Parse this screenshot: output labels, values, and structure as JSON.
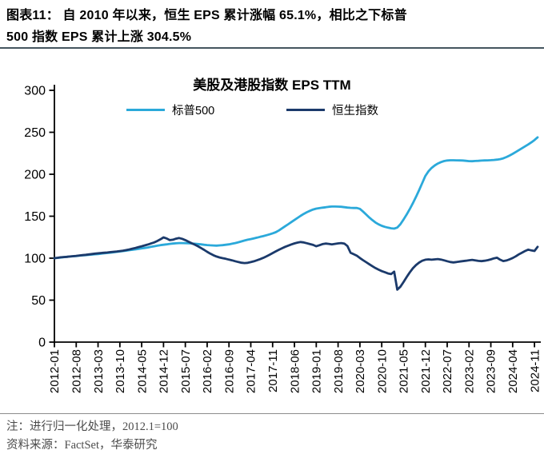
{
  "header": {
    "line1": "图表11：  自 2010 年以来，恒生 EPS 累计涨幅 65.1%，相比之下标普",
    "line2": "500 指数 EPS 累计上涨 304.5%"
  },
  "chart": {
    "title": "美股及港股指数 EPS TTM",
    "colors": {
      "sp500": "#2BA9DA",
      "hsi": "#1B3A6B",
      "axis": "#000000"
    }
  },
  "chart_data": {
    "type": "line",
    "title": "美股及港股指数 EPS TTM",
    "normalization": "2012.1=100",
    "x_start": "2012-01",
    "x_freq": "monthly",
    "ylim": [
      0,
      300
    ],
    "yticks": [
      0,
      50,
      100,
      150,
      200,
      250,
      300
    ],
    "xtick_labels": [
      "2012-01",
      "2012-08",
      "2013-03",
      "2013-10",
      "2014-05",
      "2014-12",
      "2015-07",
      "2016-02",
      "2016-09",
      "2017-04",
      "2017-11",
      "2018-06",
      "2019-01",
      "2019-08",
      "2020-03",
      "2020-10",
      "2021-05",
      "2021-12",
      "2022-07",
      "2023-02",
      "2023-09",
      "2024-04",
      "2024-11"
    ],
    "xtick_step_months": 7,
    "legend_position": "top",
    "grid": false,
    "series": [
      {
        "name": "标普500",
        "color": "#2BA9DA",
        "values": [
          100,
          100.4,
          100.8,
          101.2,
          101.6,
          102,
          102.3,
          102.6,
          103,
          103.3,
          103.6,
          104,
          104.3,
          104.7,
          105,
          105.4,
          105.8,
          106.2,
          106.6,
          107,
          107.5,
          108,
          108.5,
          109,
          109.5,
          110,
          110.5,
          111,
          111.6,
          112.2,
          112.8,
          113.5,
          114.2,
          114.9,
          115.5,
          116,
          116.5,
          117,
          117.4,
          117.7,
          118,
          118,
          117.9,
          117.7,
          117.5,
          117.2,
          116.9,
          116.5,
          116,
          115.6,
          115.3,
          115.1,
          115,
          115.2,
          115.5,
          116,
          116.5,
          117.2,
          118,
          119,
          120,
          121,
          122,
          122.8,
          123.6,
          124.5,
          125.4,
          126.3,
          127.3,
          128.4,
          129.6,
          131,
          133,
          135.5,
          138,
          140.5,
          143,
          145.5,
          148,
          150.5,
          152.8,
          154.8,
          156.5,
          158,
          159,
          159.6,
          160.2,
          160.7,
          161.2,
          161.5,
          161.5,
          161.4,
          161.2,
          160.8,
          160.3,
          160,
          159.8,
          159.8,
          158.8,
          155.5,
          152,
          148.5,
          145.3,
          142.5,
          140.3,
          138.6,
          137.3,
          136.4,
          135.6,
          135.2,
          136.5,
          140.5,
          146,
          152,
          158.5,
          165.5,
          173,
          181,
          189.5,
          198,
          203.5,
          207.5,
          210.5,
          212.8,
          214.5,
          215.7,
          216.4,
          216.7,
          216.7,
          216.6,
          216.5,
          216.4,
          216,
          215.6,
          215.5,
          215.8,
          216,
          216.3,
          216.5,
          216.6,
          216.8,
          217,
          217.4,
          218,
          219,
          220.5,
          222.3,
          224.3,
          226.5,
          228.8,
          231,
          233.2,
          235.5,
          238,
          240.8,
          244
        ]
      },
      {
        "name": "恒生指数",
        "color": "#1B3A6B",
        "values": [
          100,
          100.5,
          101,
          101.3,
          101.6,
          102,
          102.4,
          102.8,
          103.2,
          103.6,
          104,
          104.5,
          105,
          105.4,
          105.8,
          106.2,
          106.5,
          106.8,
          107.2,
          107.6,
          108,
          108.5,
          109,
          109.6,
          110.4,
          111.3,
          112.2,
          113.2,
          114.2,
          115.2,
          116.3,
          117.5,
          118.8,
          120.5,
          122.5,
          124.8,
          123.5,
          121.5,
          122,
          123.2,
          124,
          123,
          121.5,
          119.6,
          117.8,
          116.2,
          114.3,
          112.2,
          110,
          107.6,
          105.4,
          103.5,
          102,
          100.9,
          100,
          99.2,
          98.3,
          97.4,
          96.4,
          95.4,
          94.6,
          94.2,
          94.5,
          95.3,
          96.3,
          97.5,
          98.9,
          100.4,
          102.2,
          104.1,
          106.1,
          108.1,
          110,
          111.8,
          113.5,
          115,
          116.4,
          117.6,
          118.6,
          119.2,
          118.8,
          117.8,
          116.8,
          115.8,
          114.2,
          115.4,
          116.8,
          117.4,
          117,
          116.5,
          117,
          117.6,
          118,
          117.4,
          114.5,
          106.5,
          104.8,
          103,
          100.2,
          97.6,
          95.2,
          92.8,
          90.4,
          88.2,
          86.3,
          84.6,
          83.2,
          81.8,
          81,
          84,
          62.5,
          66,
          71.5,
          77.5,
          83,
          88,
          91.8,
          94.8,
          97,
          98.2,
          98.6,
          98.2,
          98.6,
          99,
          98.4,
          97.4,
          96.4,
          95.4,
          95,
          95.4,
          96,
          96.5,
          97,
          97.5,
          98,
          97.4,
          96.8,
          96.5,
          97,
          97.6,
          98.6,
          99.8,
          100.6,
          98.2,
          96.6,
          97.2,
          98.6,
          100.2,
          102.2,
          104.6,
          106.6,
          108.6,
          110.2,
          109.2,
          108.6,
          113.5
        ]
      }
    ]
  },
  "footer": {
    "note": "注：进行归一化处理，2012.1=100",
    "source": "资料来源：FactSet，华泰研究"
  }
}
